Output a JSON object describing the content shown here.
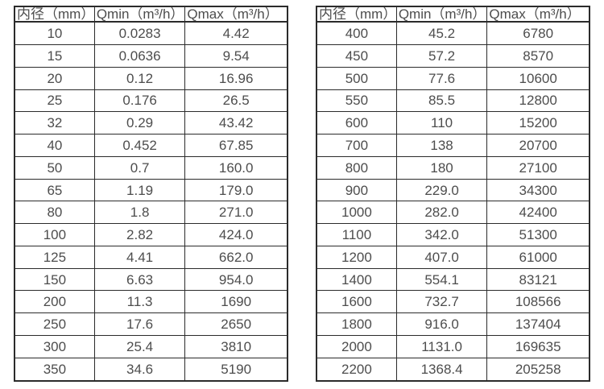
{
  "tables": [
    {
      "name": "flow-spec-small-diameters",
      "headers": [
        "内径（mm）",
        "Qmin（m³/h）",
        "Qmax（m³/h）"
      ],
      "rows": [
        [
          "10",
          "0.0283",
          "4.42"
        ],
        [
          "15",
          "0.0636",
          "9.54"
        ],
        [
          "20",
          "0.12",
          "16.96"
        ],
        [
          "25",
          "0.176",
          "26.5"
        ],
        [
          "32",
          "0.29",
          "43.42"
        ],
        [
          "40",
          "0.452",
          "67.85"
        ],
        [
          "50",
          "0.7",
          "160.0"
        ],
        [
          "65",
          "1.19",
          "179.0"
        ],
        [
          "80",
          "1.8",
          "271.0"
        ],
        [
          "100",
          "2.82",
          "424.0"
        ],
        [
          "125",
          "4.41",
          "662.0"
        ],
        [
          "150",
          "6.63",
          "954.0"
        ],
        [
          "200",
          "11.3",
          "1690"
        ],
        [
          "250",
          "17.6",
          "2650"
        ],
        [
          "300",
          "25.4",
          "3810"
        ],
        [
          "350",
          "34.6",
          "5190"
        ]
      ]
    },
    {
      "name": "flow-spec-large-diameters",
      "headers": [
        "内径（mm）",
        "Qmin（m³/h）",
        "Qmax（m³/h）"
      ],
      "rows": [
        [
          "400",
          "45.2",
          "6780"
        ],
        [
          "450",
          "57.2",
          "8570"
        ],
        [
          "500",
          "77.6",
          "10600"
        ],
        [
          "550",
          "85.5",
          "12800"
        ],
        [
          "600",
          "110",
          "15200"
        ],
        [
          "700",
          "138",
          "20700"
        ],
        [
          "800",
          "180",
          "27100"
        ],
        [
          "900",
          "229.0",
          "34300"
        ],
        [
          "1000",
          "282.0",
          "42400"
        ],
        [
          "1100",
          "342.0",
          "51300"
        ],
        [
          "1200",
          "407.0",
          "61000"
        ],
        [
          "1400",
          "554.1",
          "83121"
        ],
        [
          "1600",
          "732.7",
          "108566"
        ],
        [
          "1800",
          "916.0",
          "137404"
        ],
        [
          "2000",
          "1131.0",
          "169635"
        ],
        [
          "2200",
          "1368.4",
          "205258"
        ]
      ]
    },
    {
      "colors": {
        "border": "#2b2b2b",
        "text": "#4d4d4d",
        "background": "#ffffff"
      }
    }
  ]
}
